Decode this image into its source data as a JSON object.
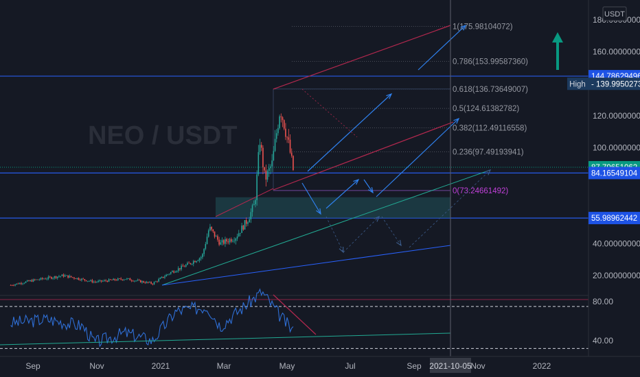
{
  "symbol": {
    "watermark": "NEO / USDT",
    "currency_badge": "USDT"
  },
  "colors": {
    "background": "#151924",
    "candle_up": "#26a69a",
    "candle_down": "#ef5350",
    "blue_line": "#2962ff",
    "fib_line": "#787b86",
    "red_trend": "#b2284e",
    "green_trend": "#22ab94",
    "rsi_line": "#2f6fd6",
    "accent_green": "#089981",
    "label_blue": "#1e53e5"
  },
  "price_axis": {
    "ticks": [
      "180.00000000",
      "160.00000000",
      "120.00000000",
      "100.00000000",
      "40.00000000",
      "20.00000000"
    ],
    "tick_values": [
      180,
      160,
      120,
      100,
      40,
      20
    ],
    "badges": [
      {
        "text": "144.78629496",
        "value": 144.79,
        "style": "blue"
      },
      {
        "text": "139.99502734",
        "value": 140.0,
        "style": "high",
        "prefix": "High"
      },
      {
        "text": "87.79651062",
        "value": 87.8,
        "style": "green"
      },
      {
        "text": "84.16549104",
        "value": 84.17,
        "style": "blue"
      },
      {
        "text": "55.98962442",
        "value": 55.99,
        "style": "blue"
      }
    ]
  },
  "rsi_axis": {
    "ticks": [
      "80.00",
      "40.00"
    ],
    "tick_values": [
      80,
      40
    ]
  },
  "time_axis": {
    "labels": [
      "Sep",
      "Nov",
      "2021",
      "Mar",
      "May",
      "Jul",
      "Sep",
      "Nov",
      "2022"
    ],
    "crosshair_label": "2021-10-05"
  },
  "fib_levels": [
    {
      "ratio": "1",
      "value": 175.98104072,
      "label": "1(175.98104072)"
    },
    {
      "ratio": "0.786",
      "value": 153.9958736,
      "label": "0.786(153.99587360)"
    },
    {
      "ratio": "0.618",
      "value": 136.73649007,
      "label": "0.618(136.73649007)"
    },
    {
      "ratio": "0.5",
      "value": 124.61382782,
      "label": "0.5(124.61382782)"
    },
    {
      "ratio": "0.382",
      "value": 112.49116558,
      "label": "0.382(112.49116558)"
    },
    {
      "ratio": "0.236",
      "value": 97.49193941,
      "label": "0.236(97.49193941)"
    },
    {
      "ratio": "0",
      "value": 73.24661492,
      "label": "0(73.24661492)"
    }
  ],
  "chart_data": {
    "type": "line",
    "title": "NEO / USDT",
    "series": [
      {
        "name": "",
        "x": [
          "2020-08-10",
          "2020-09-01",
          "2020-10-01",
          "2020-11-01",
          "2020-12-01",
          "2020-12-28",
          "2021-01-15",
          "2021-02-01",
          "2021-02-15",
          "2021-02-22",
          "2021-03-05",
          "2021-03-20",
          "2021-04-01",
          "2021-04-08",
          "2021-04-13",
          "2021-04-18",
          "2021-04-25",
          "2021-05-03",
          "2021-05-07",
          "2021-05-12",
          "2021-05-17"
        ],
        "values": [
          14,
          17,
          20,
          16,
          18,
          15,
          22,
          27,
          32,
          50,
          40,
          44,
          55,
          65,
          105,
          80,
          90,
          125,
          115,
          100,
          82
        ]
      }
    ],
    "rsi": {
      "x": [
        "2020-08-10",
        "2020-09-15",
        "2020-10-20",
        "2020-11-01",
        "2020-12-01",
        "2020-12-28",
        "2021-01-20",
        "2021-02-20",
        "2021-03-05",
        "2021-04-15",
        "2021-05-01",
        "2021-05-17"
      ],
      "values": [
        58,
        62,
        55,
        38,
        48,
        40,
        70,
        75,
        55,
        90,
        68,
        48
      ]
    },
    "ylim": [
      0,
      190
    ],
    "rsi_ylim": [
      25,
      100
    ],
    "grid": false,
    "scale": "linear"
  }
}
